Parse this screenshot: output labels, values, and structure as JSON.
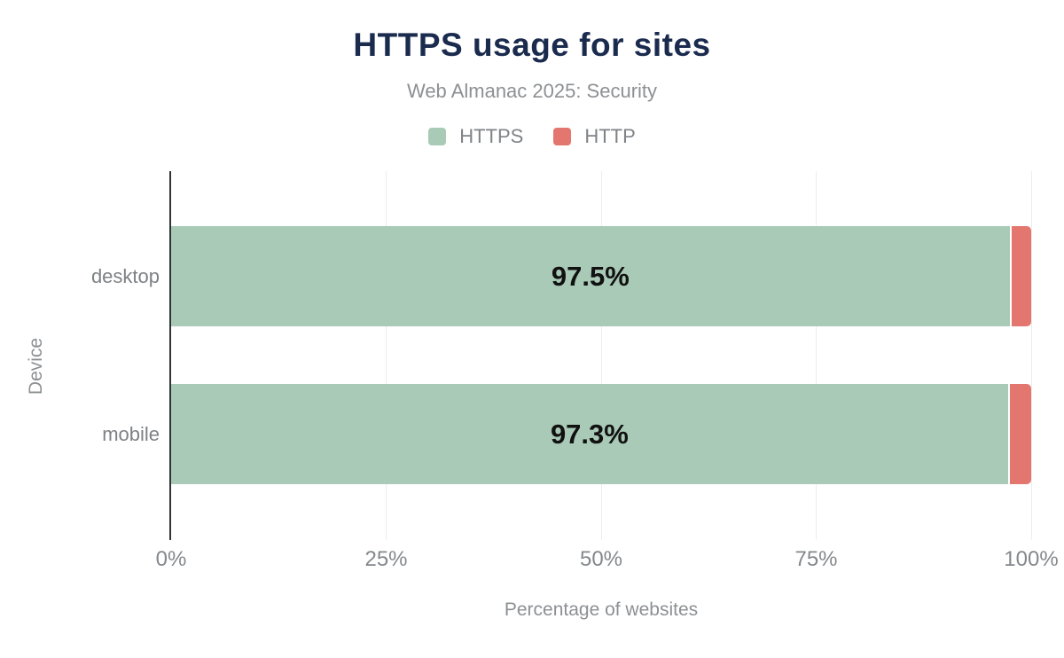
{
  "title": "HTTPS usage for sites",
  "subtitle": "Web Almanac 2025: Security",
  "legend": {
    "items": [
      {
        "label": "HTTPS",
        "color": "#a8cab6"
      },
      {
        "label": "HTTP",
        "color": "#e3766e"
      }
    ]
  },
  "colors": {
    "title": "#1a2b4e",
    "subtitle": "#8d9093",
    "axis_line": "#303336",
    "gridline": "#ededed",
    "tick_label": "#84888c",
    "category_label": "#7e8184",
    "bar_label": "#111111",
    "https_green": "#a8cab6",
    "http_red": "#e3766e"
  },
  "chart_data": {
    "type": "bar",
    "orientation": "horizontal",
    "stacked": true,
    "title": "HTTPS usage for sites",
    "subtitle": "Web Almanac 2025: Security",
    "categories": [
      "desktop",
      "mobile"
    ],
    "series": [
      {
        "name": "HTTPS",
        "color": "#a8cab6",
        "values": [
          97.5,
          97.3
        ]
      },
      {
        "name": "HTTP",
        "color": "#e3766e",
        "values": [
          2.5,
          2.7
        ]
      }
    ],
    "bar_labels": [
      "97.5%",
      "97.3%"
    ],
    "xlabel": "Percentage of websites",
    "ylabel": "Device",
    "xlim": [
      0,
      100
    ],
    "xticks": [
      "0%",
      "25%",
      "50%",
      "75%",
      "100%"
    ],
    "grid": true,
    "legend_position": "top"
  }
}
